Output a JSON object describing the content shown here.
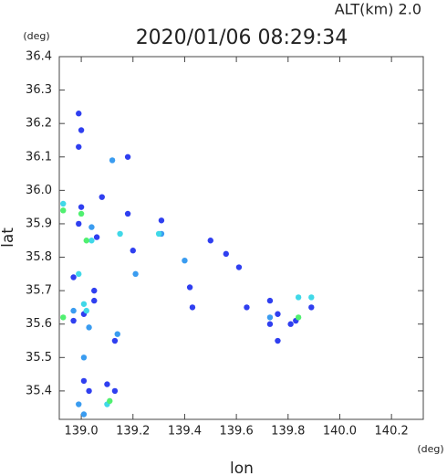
{
  "chart_data": {
    "type": "scatter",
    "title": "2020/01/06 08:29:34",
    "subtitle": "ALT(km)  2.0",
    "x_label": "lon",
    "y_label": "lat",
    "x_unit": "(deg)",
    "y_unit": "(deg)",
    "xlim": [
      138.915,
      140.323
    ],
    "ylim": [
      35.315,
      36.4
    ],
    "xticks": [
      {
        "value": 139,
        "label": "139.0"
      },
      139.2,
      139.4,
      139.6,
      139.8,
      {
        "value": 140,
        "label": "140.0"
      },
      140.2
    ],
    "yticks": [
      35.4,
      35.5,
      35.6,
      35.7,
      35.8,
      35.9,
      {
        "value": 36,
        "label": "36.0"
      },
      36.1,
      36.2,
      36.3,
      36.4
    ],
    "series": [
      {
        "color": "#2f3ff0",
        "x": [
          138.99,
          139.0,
          138.99,
          139.0,
          138.99,
          139.06,
          139.01,
          138.97,
          139.01,
          139.03,
          139.1,
          139.13,
          138.97,
          139.05,
          139.05,
          139.08,
          139.18,
          139.31,
          139.2,
          139.5,
          139.56,
          139.61,
          139.42,
          139.43,
          139.64,
          139.73,
          139.76,
          139.81,
          139.83,
          139.76,
          139.18,
          139.13,
          139.73,
          139.89
        ],
        "values": [
          36.23,
          36.18,
          36.13,
          35.95,
          35.9,
          35.86,
          35.63,
          35.61,
          35.43,
          35.4,
          35.42,
          35.4,
          35.74,
          35.7,
          35.67,
          35.98,
          35.93,
          35.91,
          35.82,
          35.85,
          35.81,
          35.77,
          35.71,
          35.65,
          35.65,
          35.67,
          35.63,
          35.6,
          35.61,
          35.55,
          36.1,
          35.55,
          35.6,
          35.65
        ]
      },
      {
        "color": "#3a9cf0",
        "x": [
          139.12,
          139.04,
          139.03,
          139.01,
          138.99,
          139.01,
          138.97,
          139.14,
          139.21,
          139.31,
          139.4,
          139.73
        ],
        "values": [
          36.09,
          35.89,
          35.59,
          35.5,
          35.36,
          35.33,
          35.64,
          35.57,
          35.75,
          35.87,
          35.79,
          35.62
        ]
      },
      {
        "color": "#40d8e8",
        "x": [
          139.01,
          138.99,
          139.02,
          139.15,
          139.04,
          139.1,
          139.84,
          139.89,
          139.3,
          138.93
        ],
        "values": [
          35.66,
          35.75,
          35.64,
          35.87,
          35.85,
          35.36,
          35.68,
          35.68,
          35.87,
          35.96
        ]
      },
      {
        "color": "#50f070",
        "x": [
          138.93,
          139.02,
          138.93,
          139.11,
          139.0,
          139.84
        ],
        "values": [
          35.94,
          35.85,
          35.62,
          35.37,
          35.93,
          35.62
        ]
      }
    ]
  }
}
